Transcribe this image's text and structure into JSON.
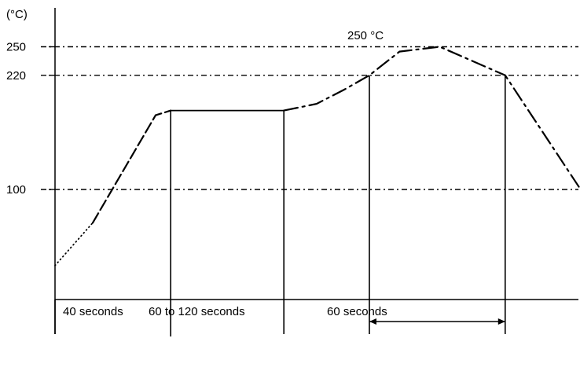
{
  "chart_data": {
    "type": "line",
    "title": "",
    "ylabel": "(°C)",
    "xlabel": "",
    "grid": "dashed reference lines at 100, 220, 250",
    "y_ticks": [
      "250",
      "220",
      "100"
    ],
    "ref_lines": [
      250,
      220,
      100
    ],
    "peak_label": "250 °C",
    "intervals": [
      "40 seconds",
      "60 to 120 seconds",
      "60 seconds"
    ],
    "series": [
      {
        "x": [
          0,
          15,
          40,
          46,
          70,
          91,
          104,
          115,
          125,
          137,
          153,
          179,
          209
        ],
        "values": [
          20,
          65,
          178,
          183,
          183,
          183,
          190,
          205,
          220,
          245,
          250,
          220,
          100
        ]
      }
    ],
    "ylim": [
      0,
      270
    ],
    "xlim": [
      0,
      215
    ]
  }
}
